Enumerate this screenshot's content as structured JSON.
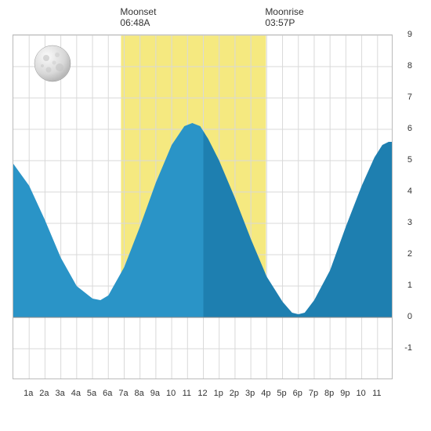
{
  "chart": {
    "type": "area",
    "moonset": {
      "label": "Moonset",
      "time": "06:48A",
      "hour": 6.8
    },
    "moonrise": {
      "label": "Moonrise",
      "time": "03:57P",
      "hour": 15.95
    },
    "daylight_band": {
      "start_hour": 6.8,
      "end_hour": 15.95,
      "color": "#f5e980"
    },
    "noon_split_hour": 12,
    "x": {
      "min": 0,
      "max": 24,
      "ticks": [
        1,
        2,
        3,
        4,
        5,
        6,
        7,
        8,
        9,
        10,
        11,
        12,
        13,
        14,
        15,
        16,
        17,
        18,
        19,
        20,
        21,
        22,
        23
      ],
      "labels": [
        "1a",
        "2a",
        "3a",
        "4a",
        "5a",
        "6a",
        "7a",
        "8a",
        "9a",
        "10",
        "11",
        "12",
        "1p",
        "2p",
        "3p",
        "4p",
        "5p",
        "6p",
        "7p",
        "8p",
        "9p",
        "10",
        "11"
      ]
    },
    "y": {
      "min": -2,
      "max": 9,
      "ticks": [
        -2,
        -1,
        0,
        1,
        2,
        3,
        4,
        5,
        6,
        7,
        8,
        9
      ],
      "labels": [
        "",
        "-1",
        "0",
        "1",
        "2",
        "3",
        "4",
        "5",
        "6",
        "7",
        "8",
        "9"
      ],
      "baseline": 0
    },
    "grid_color": "#d9d9d9",
    "border_color": "#bbbbbb",
    "label_fontsize": 11,
    "header_fontsize": 12,
    "tide": {
      "color_left": "#2a94c7",
      "color_right": "#1e7fb0",
      "points": [
        [
          0,
          4.9
        ],
        [
          1,
          4.2
        ],
        [
          2,
          3.1
        ],
        [
          3,
          1.9
        ],
        [
          4,
          1.0
        ],
        [
          5,
          0.6
        ],
        [
          5.5,
          0.55
        ],
        [
          6,
          0.7
        ],
        [
          7,
          1.6
        ],
        [
          8,
          2.9
        ],
        [
          9,
          4.3
        ],
        [
          10,
          5.5
        ],
        [
          10.8,
          6.1
        ],
        [
          11.3,
          6.2
        ],
        [
          11.8,
          6.1
        ],
        [
          12.3,
          5.7
        ],
        [
          13,
          5.0
        ],
        [
          14,
          3.8
        ],
        [
          15,
          2.5
        ],
        [
          16,
          1.3
        ],
        [
          17,
          0.5
        ],
        [
          17.6,
          0.15
        ],
        [
          18.0,
          0.1
        ],
        [
          18.4,
          0.15
        ],
        [
          19,
          0.55
        ],
        [
          20,
          1.5
        ],
        [
          21,
          2.9
        ],
        [
          22,
          4.2
        ],
        [
          22.8,
          5.1
        ],
        [
          23.3,
          5.5
        ],
        [
          23.7,
          5.6
        ],
        [
          24,
          5.6
        ]
      ]
    },
    "moon_phase": "full",
    "background_color": "#ffffff"
  }
}
